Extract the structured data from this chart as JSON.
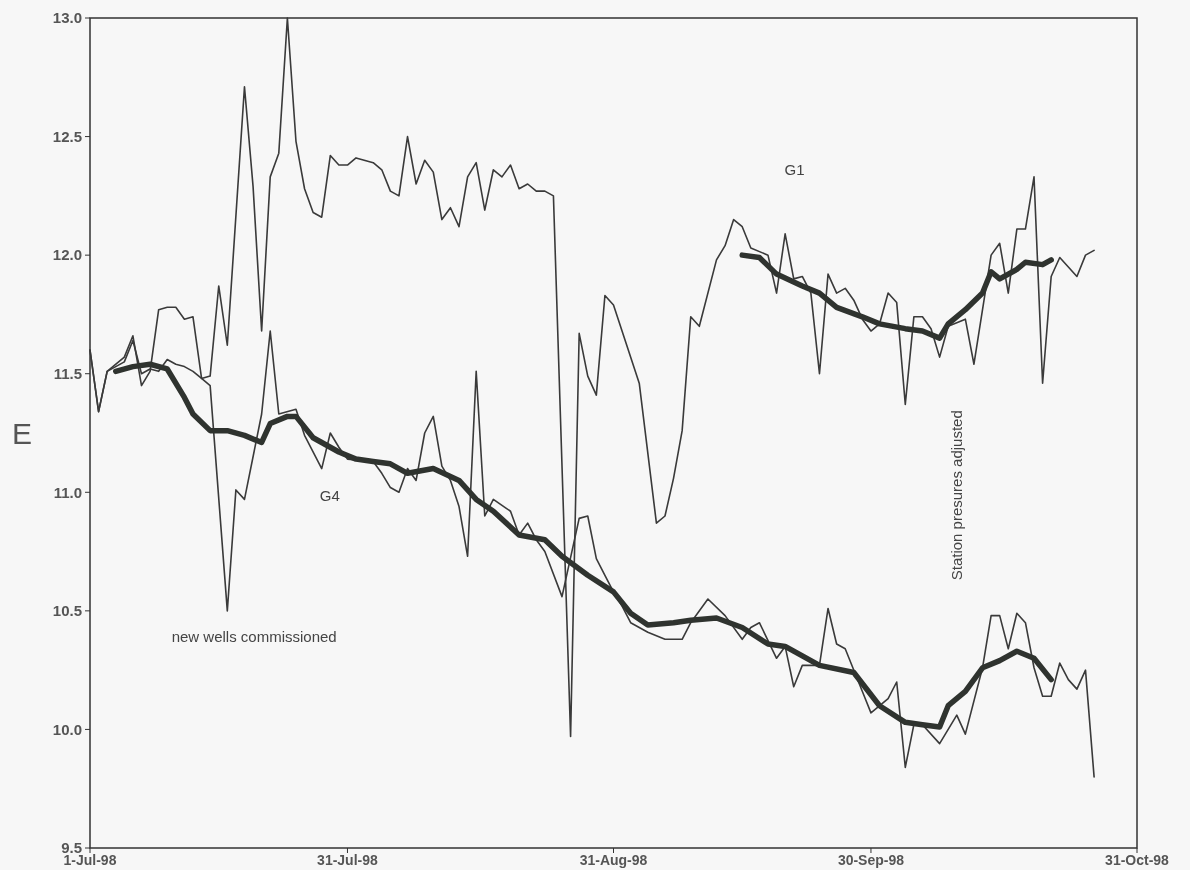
{
  "chart_data": {
    "type": "line",
    "ylabel": "E",
    "xlim": [
      "1998-07-01",
      "1998-10-31"
    ],
    "xticks": [
      {
        "value": "1998-07-01",
        "label": "1-Jul-98"
      },
      {
        "value": "1998-07-31",
        "label": "31-Jul-98"
      },
      {
        "value": "1998-08-31",
        "label": "31-Aug-98"
      },
      {
        "value": "1998-09-30",
        "label": "30-Sep-98"
      },
      {
        "value": "1998-10-31",
        "label": "31-Oct-98"
      }
    ],
    "ylim": [
      9.5,
      13
    ],
    "yticks": [
      {
        "value": 9.5,
        "label": "9.5"
      },
      {
        "value": 10,
        "label": "10.0"
      },
      {
        "value": 10.5,
        "label": "10.5"
      },
      {
        "value": 11,
        "label": "11.0"
      },
      {
        "value": 11.5,
        "label": "11.5"
      },
      {
        "value": 12,
        "label": "12.0"
      },
      {
        "value": 12.5,
        "label": "12.5"
      },
      {
        "value": 13,
        "label": "13.0"
      }
    ],
    "grid": false,
    "marker": "none",
    "line_style": "solid",
    "series": [
      {
        "color": "#3a3a3a",
        "x": [
          "1998-07-01",
          "1998-07-02",
          "1998-07-03",
          "1998-07-05",
          "1998-07-06",
          "1998-07-07",
          "1998-07-08",
          "1998-07-09",
          "1998-07-10",
          "1998-07-11",
          "1998-07-12",
          "1998-07-13",
          "1998-07-14",
          "1998-07-15",
          "1998-07-16",
          "1998-07-17",
          "1998-07-19",
          "1998-07-20",
          "1998-07-21",
          "1998-07-22",
          "1998-07-23",
          "1998-07-24",
          "1998-07-25",
          "1998-07-26",
          "1998-07-27",
          "1998-07-28",
          "1998-07-29",
          "1998-07-30",
          "1998-07-31",
          "1998-08-01",
          "1998-08-03",
          "1998-08-04",
          "1998-08-05",
          "1998-08-06",
          "1998-08-07",
          "1998-08-08",
          "1998-08-09",
          "1998-08-10",
          "1998-08-11",
          "1998-08-12",
          "1998-08-13",
          "1998-08-14",
          "1998-08-15",
          "1998-08-16",
          "1998-08-17",
          "1998-08-18",
          "1998-08-19",
          "1998-08-20",
          "1998-08-21",
          "1998-08-22",
          "1998-08-23",
          "1998-08-24",
          "1998-08-26",
          "1998-08-27",
          "1998-08-28",
          "1998-08-29",
          "1998-08-30",
          "1998-08-31",
          "1998-09-03",
          "1998-09-05",
          "1998-09-06",
          "1998-09-07",
          "1998-09-08",
          "1998-09-09",
          "1998-09-10",
          "1998-09-12",
          "1998-09-13",
          "1998-09-14",
          "1998-09-15",
          "1998-09-16",
          "1998-09-18",
          "1998-09-19",
          "1998-09-20",
          "1998-09-21",
          "1998-09-22",
          "1998-09-23",
          "1998-09-24",
          "1998-09-25",
          "1998-09-26",
          "1998-09-27",
          "1998-09-28",
          "1998-09-29",
          "1998-09-30",
          "1998-10-01",
          "1998-10-02",
          "1998-10-03",
          "1998-10-04",
          "1998-10-05",
          "1998-10-06",
          "1998-10-07",
          "1998-10-08",
          "1998-10-09",
          "1998-10-11",
          "1998-10-12",
          "1998-10-14",
          "1998-10-15",
          "1998-10-16",
          "1998-10-17",
          "1998-10-18",
          "1998-10-19",
          "1998-10-20",
          "1998-10-21",
          "1998-10-22",
          "1998-10-24",
          "1998-10-25",
          "1998-10-26"
        ],
        "values": [
          11.6,
          11.34,
          11.51,
          11.57,
          11.66,
          11.45,
          11.51,
          11.77,
          11.78,
          11.78,
          11.73,
          11.74,
          11.48,
          11.49,
          11.87,
          11.62,
          12.71,
          12.29,
          11.68,
          12.33,
          12.43,
          13.0,
          12.48,
          12.28,
          12.18,
          12.16,
          12.42,
          12.38,
          12.38,
          12.41,
          12.39,
          12.36,
          12.27,
          12.25,
          12.5,
          12.3,
          12.4,
          12.35,
          12.15,
          12.2,
          12.12,
          12.33,
          12.39,
          12.19,
          12.36,
          12.33,
          12.38,
          12.28,
          12.3,
          12.27,
          12.27,
          12.25,
          9.97,
          11.67,
          11.49,
          11.41,
          11.83,
          11.79,
          11.46,
          10.87,
          10.9,
          11.06,
          11.26,
          11.74,
          11.7,
          11.98,
          12.04,
          12.15,
          12.12,
          12.03,
          12.0,
          11.84,
          12.09,
          11.9,
          11.91,
          11.84,
          11.5,
          11.92,
          11.84,
          11.86,
          11.81,
          11.73,
          11.68,
          11.71,
          11.84,
          11.8,
          11.37,
          11.74,
          11.74,
          11.69,
          11.57,
          11.7,
          11.73,
          11.54,
          12.0,
          12.05,
          11.84,
          12.11,
          12.11,
          12.33,
          11.46,
          11.91,
          11.99,
          11.91,
          12.0,
          12.02
        ]
      },
      {
        "color": "#3a3a3a",
        "x": [
          "1998-07-01",
          "1998-07-02",
          "1998-07-03",
          "1998-07-05",
          "1998-07-06",
          "1998-07-07",
          "1998-07-08",
          "1998-07-09",
          "1998-07-10",
          "1998-07-11",
          "1998-07-12",
          "1998-07-13",
          "1998-07-14",
          "1998-07-15",
          "1998-07-17",
          "1998-07-18",
          "1998-07-19",
          "1998-07-21",
          "1998-07-22",
          "1998-07-23",
          "1998-07-25",
          "1998-07-26",
          "1998-07-28",
          "1998-07-29",
          "1998-07-30",
          "1998-07-31",
          "1998-08-03",
          "1998-08-04",
          "1998-08-05",
          "1998-08-06",
          "1998-08-07",
          "1998-08-08",
          "1998-08-09",
          "1998-08-10",
          "1998-08-11",
          "1998-08-12",
          "1998-08-13",
          "1998-08-14",
          "1998-08-15",
          "1998-08-16",
          "1998-08-17",
          "1998-08-19",
          "1998-08-20",
          "1998-08-21",
          "1998-08-22",
          "1998-08-23",
          "1998-08-25",
          "1998-08-27",
          "1998-08-28",
          "1998-08-29",
          "1998-08-30",
          "1998-08-31",
          "1998-09-01",
          "1998-09-02",
          "1998-09-04",
          "1998-09-06",
          "1998-09-08",
          "1998-09-09",
          "1998-09-11",
          "1998-09-13",
          "1998-09-15",
          "1998-09-16",
          "1998-09-17",
          "1998-09-19",
          "1998-09-20",
          "1998-09-21",
          "1998-09-22",
          "1998-09-24",
          "1998-09-25",
          "1998-09-26",
          "1998-09-27",
          "1998-09-29",
          "1998-09-30",
          "1998-10-02",
          "1998-10-03",
          "1998-10-04",
          "1998-10-05",
          "1998-10-06",
          "1998-10-08",
          "1998-10-10",
          "1998-10-11",
          "1998-10-13",
          "1998-10-14",
          "1998-10-15",
          "1998-10-16",
          "1998-10-17",
          "1998-10-18",
          "1998-10-19",
          "1998-10-20",
          "1998-10-21",
          "1998-10-22",
          "1998-10-23",
          "1998-10-24",
          "1998-10-25",
          "1998-10-26"
        ],
        "values": [
          11.6,
          11.34,
          11.51,
          11.55,
          11.64,
          11.5,
          11.52,
          11.51,
          11.56,
          11.54,
          11.53,
          11.51,
          11.48,
          11.45,
          10.5,
          11.01,
          10.97,
          11.33,
          11.68,
          11.33,
          11.35,
          11.24,
          11.1,
          11.25,
          11.19,
          11.14,
          11.13,
          11.08,
          11.02,
          11.0,
          11.1,
          11.05,
          11.25,
          11.32,
          11.11,
          11.05,
          10.94,
          10.73,
          11.51,
          10.9,
          10.97,
          10.92,
          10.82,
          10.87,
          10.8,
          10.75,
          10.56,
          10.89,
          10.9,
          10.72,
          10.65,
          10.58,
          10.52,
          10.45,
          10.41,
          10.38,
          10.38,
          10.45,
          10.55,
          10.48,
          10.38,
          10.43,
          10.45,
          10.3,
          10.35,
          10.18,
          10.27,
          10.27,
          10.51,
          10.36,
          10.34,
          10.16,
          10.07,
          10.13,
          10.2,
          9.84,
          10.02,
          10.02,
          9.94,
          10.06,
          9.98,
          10.26,
          10.48,
          10.48,
          10.34,
          10.49,
          10.45,
          10.26,
          10.14,
          10.14,
          10.28,
          10.21,
          10.17,
          10.25,
          9.8
        ]
      },
      {
        "color": "#2f332f",
        "x": [
          "1998-09-15",
          "1998-09-17",
          "1998-09-19",
          "1998-09-22",
          "1998-09-24",
          "1998-09-26",
          "1998-09-29",
          "1998-10-01",
          "1998-10-04",
          "1998-10-06",
          "1998-10-08",
          "1998-10-09",
          "1998-10-11",
          "1998-10-13",
          "1998-10-14",
          "1998-10-15",
          "1998-10-17",
          "1998-10-18",
          "1998-10-20",
          "1998-10-21"
        ],
        "values": [
          12.0,
          11.99,
          11.92,
          11.87,
          11.84,
          11.78,
          11.74,
          11.71,
          11.69,
          11.68,
          11.65,
          11.71,
          11.77,
          11.84,
          11.93,
          11.9,
          11.94,
          11.97,
          11.96,
          11.98
        ]
      },
      {
        "color": "#2f332f",
        "x": [
          "1998-07-04",
          "1998-07-06",
          "1998-07-08",
          "1998-07-10",
          "1998-07-12",
          "1998-07-13",
          "1998-07-15",
          "1998-07-17",
          "1998-07-19",
          "1998-07-21",
          "1998-07-22",
          "1998-07-24",
          "1998-07-25",
          "1998-07-27",
          "1998-07-30",
          "1998-08-01",
          "1998-08-03",
          "1998-08-05",
          "1998-08-07",
          "1998-08-10",
          "1998-08-13",
          "1998-08-15",
          "1998-08-17",
          "1998-08-20",
          "1998-08-23",
          "1998-08-25",
          "1998-08-28",
          "1998-08-31",
          "1998-09-02",
          "1998-09-04",
          "1998-09-07",
          "1998-09-09",
          "1998-09-12",
          "1998-09-15",
          "1998-09-18",
          "1998-09-20",
          "1998-09-24",
          "1998-09-28",
          "1998-10-01",
          "1998-10-04",
          "1998-10-06",
          "1998-10-08",
          "1998-10-09",
          "1998-10-11",
          "1998-10-13",
          "1998-10-15",
          "1998-10-17",
          "1998-10-19",
          "1998-10-21"
        ],
        "values": [
          11.51,
          11.53,
          11.54,
          11.52,
          11.4,
          11.33,
          11.26,
          11.26,
          11.24,
          11.21,
          11.29,
          11.32,
          11.32,
          11.23,
          11.17,
          11.14,
          11.13,
          11.12,
          11.08,
          11.1,
          11.05,
          10.97,
          10.92,
          10.82,
          10.8,
          10.73,
          10.65,
          10.58,
          10.49,
          10.44,
          10.45,
          10.46,
          10.47,
          10.43,
          10.36,
          10.35,
          10.27,
          10.24,
          10.1,
          10.03,
          10.02,
          10.01,
          10.1,
          10.16,
          10.26,
          10.29,
          10.33,
          10.3,
          10.21
        ]
      }
    ],
    "annotations": [
      "G1",
      "G4",
      "new wells commissioned",
      "Station presures adjusted"
    ]
  }
}
